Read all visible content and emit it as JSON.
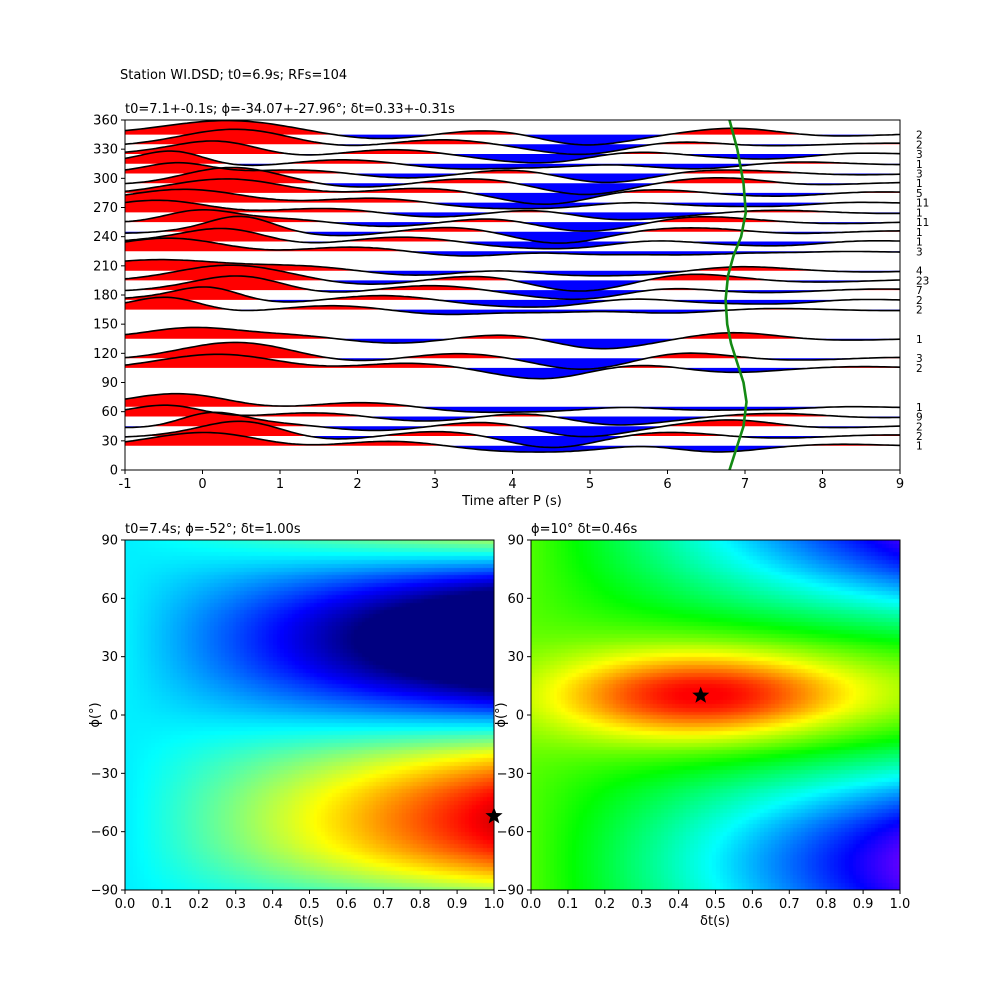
{
  "suptitle": "Station WI.DSD; t0=6.9s; RFs=104",
  "colors": {
    "positive": "#ff0000",
    "negative": "#0000ff",
    "curve": "#138a13",
    "trace": "#000000"
  },
  "chart_data": [
    {
      "type": "line",
      "title": "t0=7.1+-0.1s; ϕ=-34.07+-27.96°; δt=0.33+-0.31s",
      "xlabel": "Time after P (s)",
      "ylabel": "",
      "xlim": [
        -1,
        9
      ],
      "ylim": [
        0,
        360
      ],
      "xticks": [
        "-1",
        "0",
        "1",
        "2",
        "3",
        "4",
        "5",
        "6",
        "7",
        "8",
        "9"
      ],
      "yticks": [
        "0",
        "30",
        "60",
        "90",
        "120",
        "150",
        "180",
        "210",
        "240",
        "270",
        "300",
        "330",
        "360"
      ],
      "backazimuth_bins": [
        345,
        335,
        325,
        315,
        305,
        295,
        285,
        275,
        265,
        255,
        245,
        235,
        225,
        205,
        195,
        185,
        175,
        165,
        135,
        115,
        105,
        65,
        55,
        45,
        35,
        25
      ],
      "bin_counts": [
        "2",
        "2",
        "3",
        "1",
        "3",
        "1",
        "5",
        "11",
        "1",
        "11",
        "1",
        "1",
        "3",
        "4",
        "23",
        "7",
        "2",
        "2",
        "1",
        "3",
        "2",
        "1",
        "9",
        "2",
        "2",
        "1"
      ],
      "t0_curve": {
        "name": "",
        "t0": [
          6.8,
          6.88,
          6.98,
          7.02,
          6.98,
          6.9,
          6.82,
          6.77,
          6.75,
          6.78,
          6.85,
          6.95,
          7.01,
          6.98,
          6.9,
          6.8
        ],
        "baz": [
          0,
          20,
          45,
          70,
          90,
          110,
          130,
          150,
          175,
          200,
          220,
          240,
          265,
          295,
          330,
          360
        ]
      },
      "grid": false
    },
    {
      "type": "heatmap",
      "title": "t0=7.4s; ϕ=-52°; δt=1.00s",
      "xlabel": "δt(s)",
      "ylabel": "ϕ(°)",
      "xlim": [
        0,
        1
      ],
      "ylim": [
        -90,
        90
      ],
      "xticks": [
        "0.0",
        "0.1",
        "0.2",
        "0.3",
        "0.4",
        "0.5",
        "0.6",
        "0.7",
        "0.8",
        "0.9",
        "1.0"
      ],
      "yticks": [
        "−90",
        "−60",
        "−30",
        "0",
        "30",
        "60",
        "90"
      ],
      "colormap": "jet",
      "best": {
        "dt": 1.0,
        "phi": -52
      }
    },
    {
      "type": "heatmap",
      "title": "ϕ=10° δt=0.46s",
      "xlabel": "δt(s)",
      "ylabel": "ϕ(°)",
      "xlim": [
        0,
        1
      ],
      "ylim": [
        -90,
        90
      ],
      "xticks": [
        "0.0",
        "0.1",
        "0.2",
        "0.3",
        "0.4",
        "0.5",
        "0.6",
        "0.7",
        "0.8",
        "0.9",
        "1.0"
      ],
      "yticks": [
        "−90",
        "−60",
        "−30",
        "0",
        "30",
        "60",
        "90"
      ],
      "colormap": "gist_rainbow",
      "best": {
        "dt": 0.46,
        "phi": 10
      }
    }
  ]
}
